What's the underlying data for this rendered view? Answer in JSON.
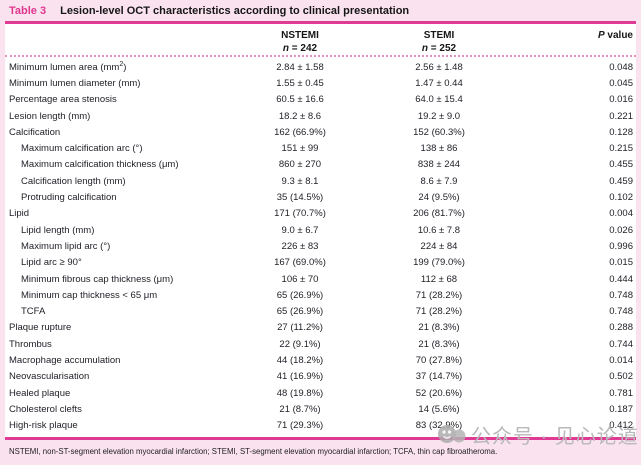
{
  "title": {
    "tag": "Table 3",
    "text": "Lesion-level OCT characteristics according to clinical presentation"
  },
  "header": {
    "col_nstemi": {
      "label": "NSTEMI",
      "n_symbol": "n",
      "n_rest": " = 242"
    },
    "col_stemi": {
      "label": "STEMI",
      "n_symbol": "n",
      "n_rest": " = 252"
    },
    "col_p": {
      "italic": "P",
      "rest": " value"
    }
  },
  "table": {
    "rows": [
      {
        "label": "Minimum lumen area (mm²)",
        "indent": false,
        "nstemi": "2.84 ± 1.58",
        "stemi": "2.56 ± 1.48",
        "p": "0.048"
      },
      {
        "label": "Minimum lumen diameter (mm)",
        "indent": false,
        "nstemi": "1.55 ± 0.45",
        "stemi": "1.47 ± 0.44",
        "p": "0.045"
      },
      {
        "label": "Percentage area stenosis",
        "indent": false,
        "nstemi": "60.5 ± 16.6",
        "stemi": "64.0 ± 15.4",
        "p": "0.016"
      },
      {
        "label": "Lesion length (mm)",
        "indent": false,
        "nstemi": "18.2 ± 8.6",
        "stemi": "19.2 ± 9.0",
        "p": "0.221"
      },
      {
        "label": "Calcification",
        "indent": false,
        "nstemi": "162 (66.9%)",
        "stemi": "152 (60.3%)",
        "p": "0.128"
      },
      {
        "label": "Maximum calcification arc (°)",
        "indent": true,
        "nstemi": "151 ± 99",
        "stemi": "138 ± 86",
        "p": "0.215"
      },
      {
        "label": "Maximum calcification thickness (μm)",
        "indent": true,
        "nstemi": "860 ± 270",
        "stemi": "838 ± 244",
        "p": "0.455"
      },
      {
        "label": "Calcification length (mm)",
        "indent": true,
        "nstemi": "9.3 ± 8.1",
        "stemi": "8.6 ± 7.9",
        "p": "0.459"
      },
      {
        "label": "Protruding calcification",
        "indent": true,
        "nstemi": "35 (14.5%)",
        "stemi": "24 (9.5%)",
        "p": "0.102"
      },
      {
        "label": "Lipid",
        "indent": false,
        "nstemi": "171 (70.7%)",
        "stemi": "206 (81.7%)",
        "p": "0.004"
      },
      {
        "label": "Lipid length (mm)",
        "indent": true,
        "nstemi": "9.0 ± 6.7",
        "stemi": "10.6 ± 7.8",
        "p": "0.026"
      },
      {
        "label": "Maximum lipid arc (°)",
        "indent": true,
        "nstemi": "226 ± 83",
        "stemi": "224 ± 84",
        "p": "0.996"
      },
      {
        "label": "Lipid arc ≥ 90°",
        "indent": true,
        "nstemi": "167 (69.0%)",
        "stemi": "199 (79.0%)",
        "p": "0.015"
      },
      {
        "label": "Minimum fibrous cap thickness (μm)",
        "indent": true,
        "nstemi": "106 ± 70",
        "stemi": "112 ± 68",
        "p": "0.444"
      },
      {
        "label": "Minimum cap thickness < 65 μm",
        "indent": true,
        "nstemi": "65 (26.9%)",
        "stemi": "71 (28.2%)",
        "p": "0.748"
      },
      {
        "label": "TCFA",
        "indent": true,
        "nstemi": "65 (26.9%)",
        "stemi": "71 (28.2%)",
        "p": "0.748"
      },
      {
        "label": "Plaque rupture",
        "indent": false,
        "nstemi": "27 (11.2%)",
        "stemi": "21 (8.3%)",
        "p": "0.288"
      },
      {
        "label": "Thrombus",
        "indent": false,
        "nstemi": "22 (9.1%)",
        "stemi": "21 (8.3%)",
        "p": "0.744"
      },
      {
        "label": "Macrophage accumulation",
        "indent": false,
        "nstemi": "44 (18.2%)",
        "stemi": "70 (27.8%)",
        "p": "0.014"
      },
      {
        "label": "Neovascularisation",
        "indent": false,
        "nstemi": "41 (16.9%)",
        "stemi": "37 (14.7%)",
        "p": "0.502"
      },
      {
        "label": "Healed plaque",
        "indent": false,
        "nstemi": "48 (19.8%)",
        "stemi": "52 (20.6%)",
        "p": "0.781"
      },
      {
        "label": "Cholesterol clefts",
        "indent": false,
        "nstemi": "21 (8.7%)",
        "stemi": "14 (5.6%)",
        "p": "0.187"
      },
      {
        "label": "High-risk plaque",
        "indent": false,
        "nstemi": "71 (29.3%)",
        "stemi": "83 (32.9%)",
        "p": "0.412"
      }
    ]
  },
  "footnote": "NSTEMI, non-ST-segment elevation myocardial infarction; STEMI, ST-segment elevation myocardial infarction; TCFA, thin cap fibroatheroma.",
  "watermark": {
    "text": "公众号 · 见心论道"
  },
  "colors": {
    "background_pink": "#fae3ef",
    "accent_rule_pink": "#df3b95",
    "table_tag_pink": "#e0368f",
    "dotted_separator_pink": "#ea8ec0",
    "body_text": "#1e1e26",
    "watermark_gray": "#b9b9b9"
  }
}
